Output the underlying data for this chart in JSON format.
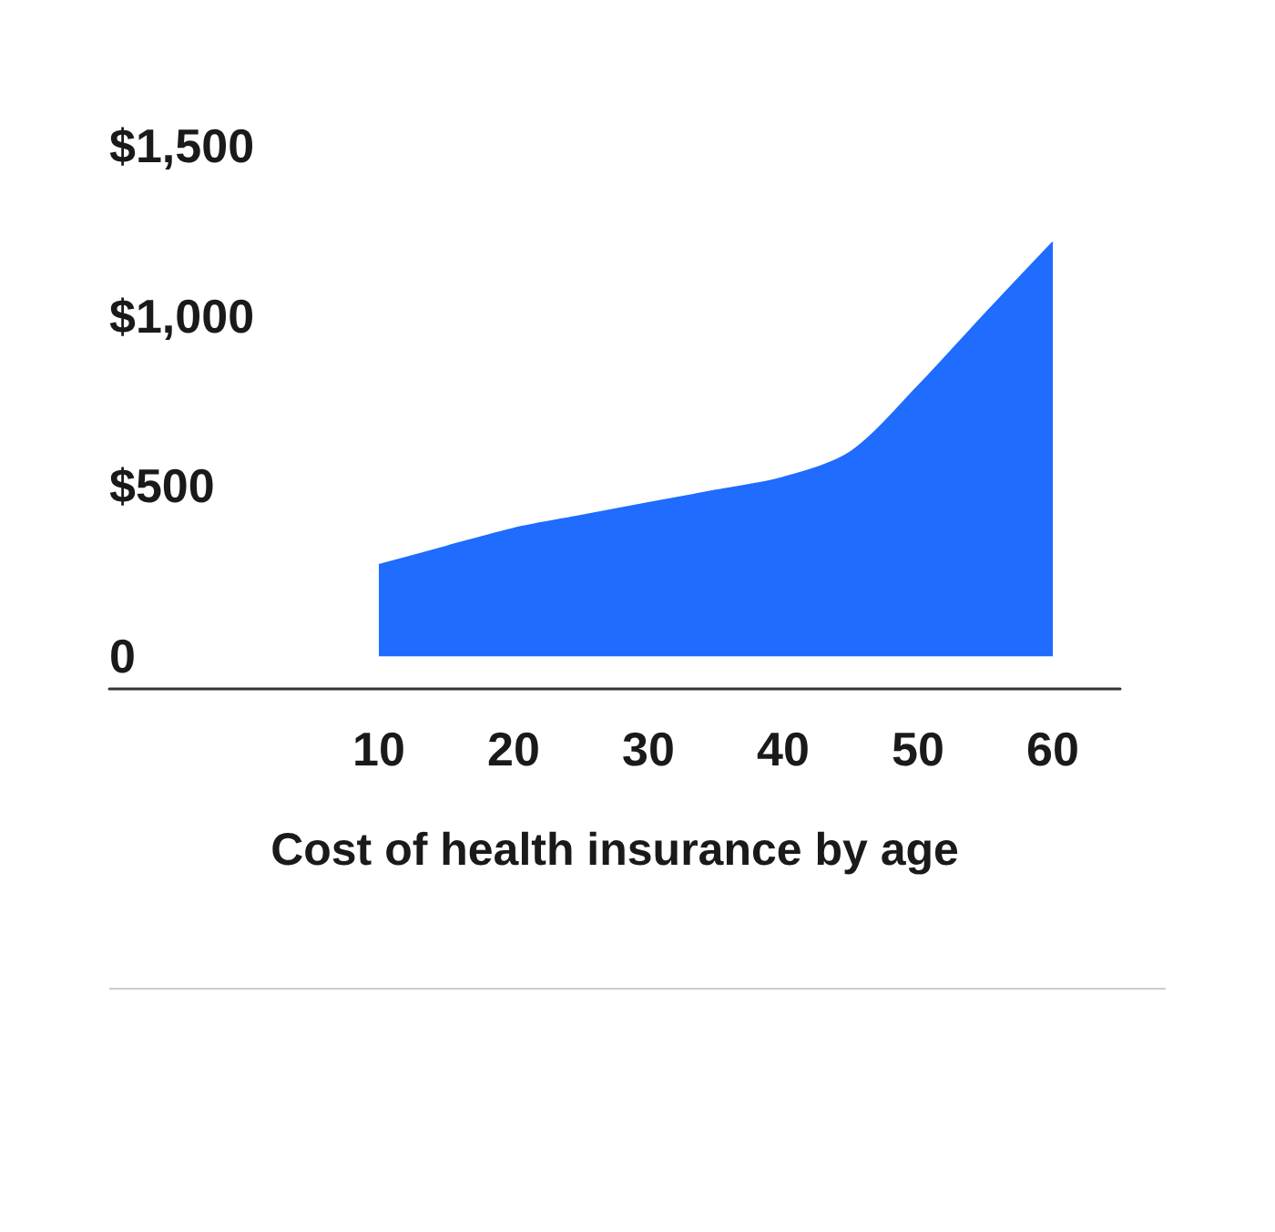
{
  "chart_data": {
    "type": "area",
    "xlabel": "Cost of health insurance by age",
    "x": [
      10,
      15,
      20,
      25,
      30,
      35,
      40,
      45,
      50,
      55,
      60
    ],
    "values": [
      268,
      322,
      375,
      413,
      450,
      487,
      525,
      600,
      793,
      1007,
      1216
    ],
    "color": "#1f6cff",
    "marker": "none",
    "xlim": [
      -10,
      65
    ],
    "xticks": [
      10,
      20,
      30,
      40,
      50,
      60
    ],
    "ylim": [
      -96,
      1500
    ],
    "yticks": [
      {
        "value": 0,
        "label": "0"
      },
      {
        "value": 500,
        "label": "$500"
      },
      {
        "value": 1000,
        "label": "$1,000"
      },
      {
        "value": 1500,
        "label": "$1,500"
      }
    ]
  }
}
